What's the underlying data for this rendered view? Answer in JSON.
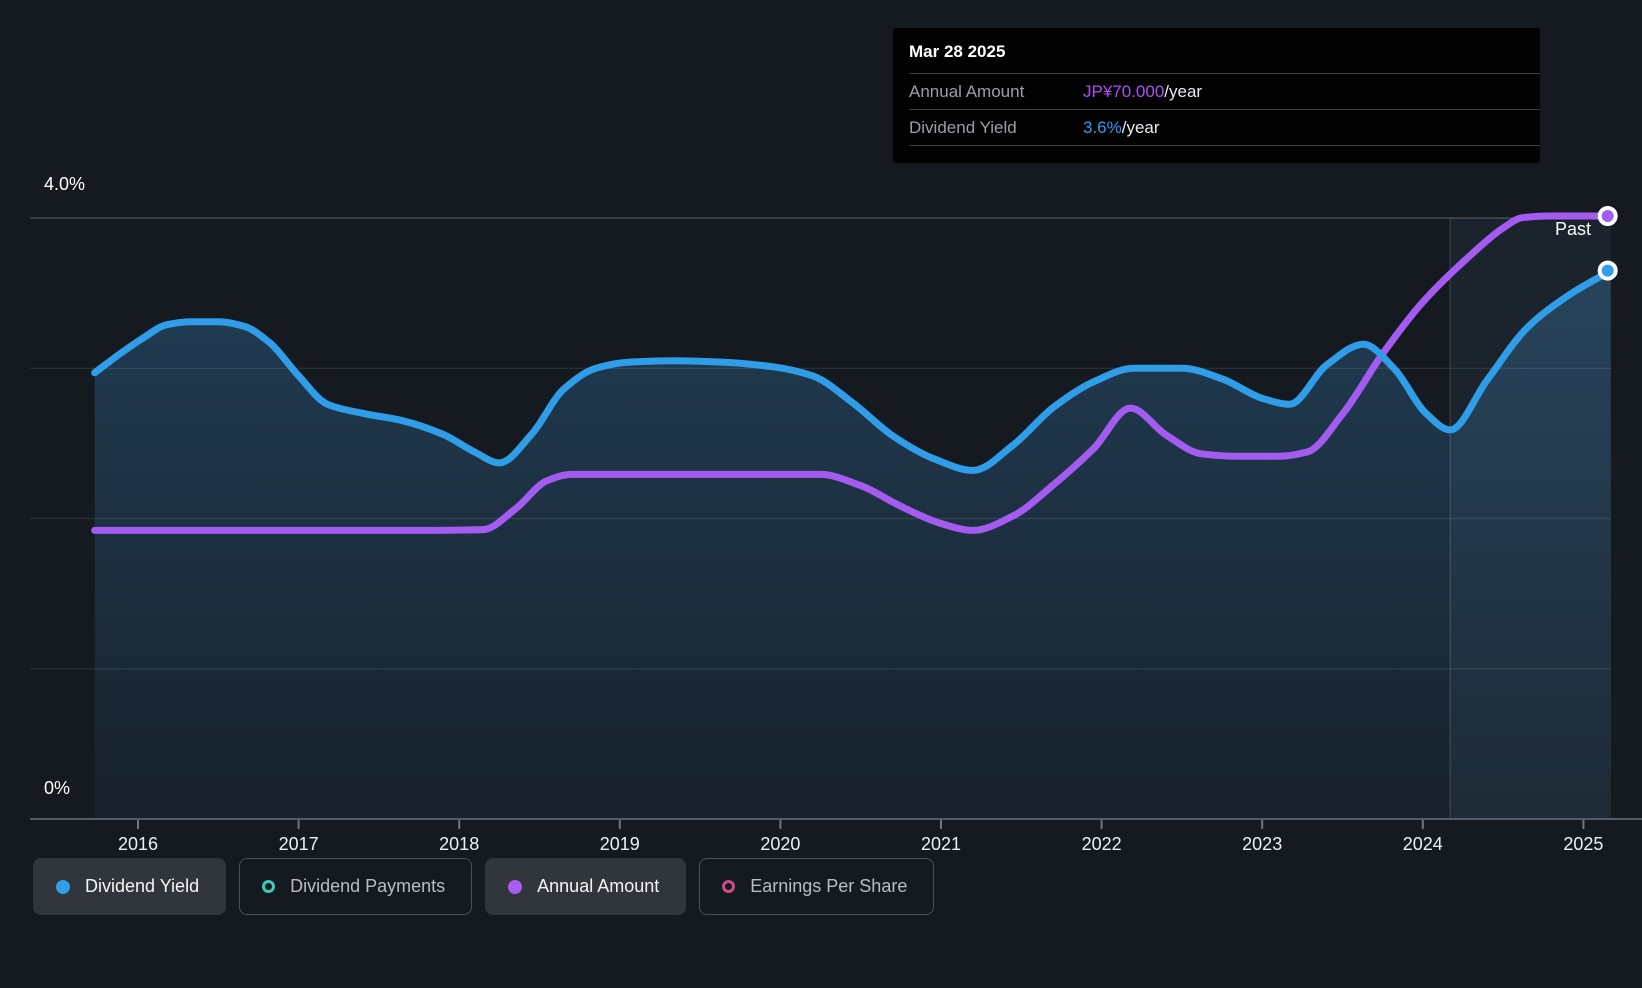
{
  "page": {
    "background": "#151a21"
  },
  "tooltip": {
    "date": "Mar 28 2025",
    "rows": [
      {
        "label": "Annual Amount",
        "value": "JP¥70.000",
        "suffix": "/year",
        "value_color": "#ae4ff2"
      },
      {
        "label": "Dividend Yield",
        "value": "3.6%",
        "suffix": "/year",
        "value_color": "#2f9bf0"
      }
    ]
  },
  "past_label": "Past",
  "y_axis": {
    "top_label": "4.0%",
    "bottom_label": "0%"
  },
  "x_axis": {
    "years": [
      "2016",
      "2017",
      "2018",
      "2019",
      "2020",
      "2021",
      "2022",
      "2023",
      "2024",
      "2025"
    ]
  },
  "legend": {
    "items": [
      {
        "label": "Dividend Yield",
        "marker": "dot",
        "color": "#2f9de8",
        "active": true
      },
      {
        "label": "Dividend Payments",
        "marker": "ring",
        "color": "#3fc8b4",
        "active": false
      },
      {
        "label": "Annual Amount",
        "marker": "dot",
        "color": "#a85cf2",
        "active": true
      },
      {
        "label": "Earnings Per Share",
        "marker": "ring",
        "color": "#d04b85",
        "active": false
      }
    ]
  },
  "chart_data": {
    "type": "area",
    "title": "Dividend yield and annual dividend amount history",
    "x_axis_years": [
      2016,
      2017,
      2018,
      2019,
      2020,
      2021,
      2022,
      2023,
      2024,
      2025
    ],
    "x_range_years": [
      2015.73,
      2025.17
    ],
    "grid": true,
    "legend_position": "bottom",
    "y_left": {
      "label": "Dividend Yield",
      "unit": "%",
      "range": [
        0,
        4
      ],
      "gridline_values": [
        1,
        2,
        3,
        4
      ]
    },
    "y_hidden_amount_scale": {
      "label": "Annual Amount",
      "unit": "JP¥",
      "range": [
        0,
        70.2
      ]
    },
    "divider_year": 2024.17,
    "series": [
      {
        "name": "Dividend Yield",
        "unit": "%",
        "color": "#2f9de8",
        "final_label": "3.6%/year",
        "points": [
          [
            2015.73,
            2.97
          ],
          [
            2015.88,
            3.09
          ],
          [
            2016.03,
            3.2
          ],
          [
            2016.18,
            3.29
          ],
          [
            2016.33,
            3.31
          ],
          [
            2016.5,
            3.31
          ],
          [
            2016.66,
            3.28
          ],
          [
            2016.82,
            3.17
          ],
          [
            2017.0,
            2.95
          ],
          [
            2017.18,
            2.76
          ],
          [
            2017.4,
            2.7
          ],
          [
            2017.65,
            2.65
          ],
          [
            2017.9,
            2.56
          ],
          [
            2018.1,
            2.44
          ],
          [
            2018.25,
            2.37
          ],
          [
            2018.45,
            2.56
          ],
          [
            2018.65,
            2.86
          ],
          [
            2018.85,
            3.0
          ],
          [
            2019.05,
            3.04
          ],
          [
            2019.35,
            3.05
          ],
          [
            2019.65,
            3.04
          ],
          [
            2019.95,
            3.01
          ],
          [
            2020.2,
            2.95
          ],
          [
            2020.45,
            2.77
          ],
          [
            2020.7,
            2.55
          ],
          [
            2020.95,
            2.4
          ],
          [
            2021.2,
            2.32
          ],
          [
            2021.45,
            2.49
          ],
          [
            2021.7,
            2.74
          ],
          [
            2021.95,
            2.91
          ],
          [
            2022.2,
            3.0
          ],
          [
            2022.5,
            3.0
          ],
          [
            2022.75,
            2.93
          ],
          [
            2023.0,
            2.8
          ],
          [
            2023.17,
            2.76
          ],
          [
            2023.4,
            3.02
          ],
          [
            2023.63,
            3.16
          ],
          [
            2023.82,
            3.0
          ],
          [
            2024.02,
            2.7
          ],
          [
            2024.17,
            2.59
          ],
          [
            2024.4,
            2.92
          ],
          [
            2024.65,
            3.27
          ],
          [
            2024.9,
            3.48
          ],
          [
            2025.17,
            3.65
          ]
        ]
      },
      {
        "name": "Annual Amount",
        "unit": "JP¥",
        "color": "#a35bf0",
        "final_label": "JP¥70.000/year",
        "points": [
          [
            2015.73,
            33.5
          ],
          [
            2016.2,
            33.5
          ],
          [
            2016.7,
            33.5
          ],
          [
            2017.2,
            33.5
          ],
          [
            2017.7,
            33.5
          ],
          [
            2018.15,
            33.6
          ],
          [
            2018.35,
            36.0
          ],
          [
            2018.55,
            39.3
          ],
          [
            2018.7,
            40.0
          ],
          [
            2019.1,
            40.0
          ],
          [
            2019.5,
            40.0
          ],
          [
            2019.9,
            40.0
          ],
          [
            2020.25,
            40.0
          ],
          [
            2020.5,
            38.7
          ],
          [
            2020.75,
            36.3
          ],
          [
            2021.0,
            34.3
          ],
          [
            2021.2,
            33.5
          ],
          [
            2021.45,
            35.2
          ],
          [
            2021.7,
            38.8
          ],
          [
            2021.95,
            43.0
          ],
          [
            2022.18,
            47.7
          ],
          [
            2022.4,
            44.6
          ],
          [
            2022.62,
            42.4
          ],
          [
            2022.85,
            42.1
          ],
          [
            2023.1,
            42.1
          ],
          [
            2023.28,
            42.6
          ],
          [
            2023.5,
            47.0
          ],
          [
            2023.75,
            54.0
          ],
          [
            2024.0,
            60.0
          ],
          [
            2024.3,
            65.5
          ],
          [
            2024.5,
            68.6
          ],
          [
            2024.62,
            69.8
          ],
          [
            2024.78,
            70.0
          ],
          [
            2025.17,
            70.0
          ]
        ]
      }
    ]
  }
}
